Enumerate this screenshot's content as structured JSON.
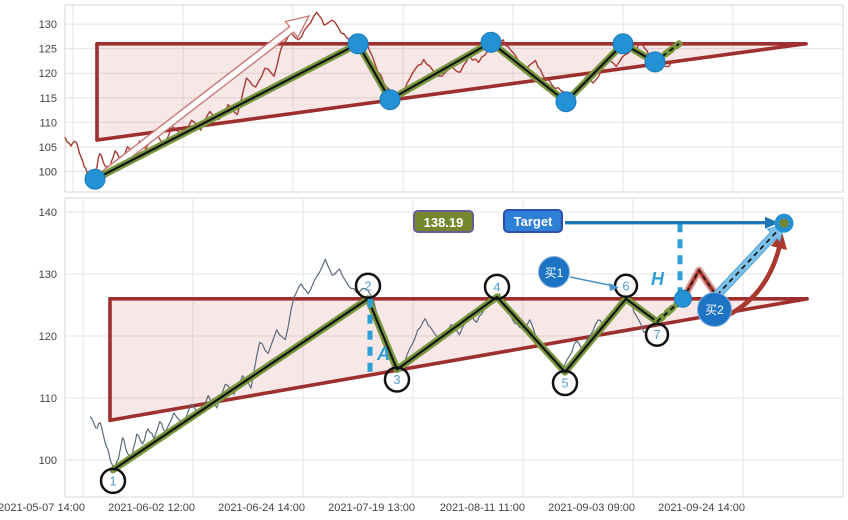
{
  "chart_data": {
    "type": "line",
    "title": "",
    "panels": [
      {
        "id": "top",
        "y_ticks": [
          "100",
          "105",
          "110",
          "115",
          "120",
          "125",
          "130"
        ],
        "x_ticks": []
      },
      {
        "id": "bottom",
        "y_ticks": [
          "100",
          "110",
          "120",
          "130",
          "140"
        ],
        "x_ticks": [
          "2021-05-07 14:00",
          "2021-06-02 12:00",
          "2021-06-24 14:00",
          "2021-07-19 13:00",
          "2021-08-11 11:00",
          "2021-09-03 09:00",
          "2021-09-24 14:00"
        ]
      }
    ],
    "price_series": {
      "name": "price",
      "points": [
        [
          0,
          107
        ],
        [
          0.01,
          105.2
        ],
        [
          0.018,
          106
        ],
        [
          0.026,
          103
        ],
        [
          0.034,
          100.6
        ],
        [
          0.042,
          98.4
        ],
        [
          0.05,
          100.2
        ],
        [
          0.057,
          103.6
        ],
        [
          0.065,
          101.2
        ],
        [
          0.073,
          100.4
        ],
        [
          0.082,
          104.2
        ],
        [
          0.092,
          102.6
        ],
        [
          0.102,
          105
        ],
        [
          0.112,
          103.4
        ],
        [
          0.122,
          106.2
        ],
        [
          0.132,
          104.6
        ],
        [
          0.147,
          107.6
        ],
        [
          0.162,
          105.8
        ],
        [
          0.177,
          109
        ],
        [
          0.192,
          107.2
        ],
        [
          0.207,
          110.4
        ],
        [
          0.222,
          108.4
        ],
        [
          0.237,
          112.2
        ],
        [
          0.252,
          110.6
        ],
        [
          0.267,
          113.6
        ],
        [
          0.282,
          111.6
        ],
        [
          0.297,
          119
        ],
        [
          0.312,
          117.2
        ],
        [
          0.327,
          121
        ],
        [
          0.342,
          119.4
        ],
        [
          0.357,
          126.2
        ],
        [
          0.37,
          128.4
        ],
        [
          0.382,
          126.8
        ],
        [
          0.397,
          129.6
        ],
        [
          0.412,
          132.4
        ],
        [
          0.424,
          129.8
        ],
        [
          0.437,
          130.8
        ],
        [
          0.452,
          128.2
        ],
        [
          0.467,
          127
        ],
        [
          0.482,
          127.6
        ],
        [
          0.494,
          126.2
        ],
        [
          0.507,
          122
        ],
        [
          0.522,
          118
        ],
        [
          0.534,
          115.6
        ],
        [
          0.547,
          114.4
        ],
        [
          0.56,
          118
        ],
        [
          0.574,
          121
        ],
        [
          0.587,
          122.8
        ],
        [
          0.602,
          120.6
        ],
        [
          0.617,
          119.4
        ],
        [
          0.632,
          121.8
        ],
        [
          0.647,
          120.2
        ],
        [
          0.662,
          123.6
        ],
        [
          0.677,
          122.2
        ],
        [
          0.692,
          124.6
        ],
        [
          0.707,
          126.4
        ],
        [
          0.717,
          126.8
        ],
        [
          0.73,
          124.6
        ],
        [
          0.744,
          122
        ],
        [
          0.757,
          121.2
        ],
        [
          0.77,
          122.6
        ],
        [
          0.782,
          119.6
        ],
        [
          0.797,
          117.6
        ],
        [
          0.812,
          116.4
        ],
        [
          0.827,
          114.4
        ],
        [
          0.84,
          116.8
        ],
        [
          0.852,
          119.2
        ],
        [
          0.864,
          118
        ],
        [
          0.877,
          120.2
        ],
        [
          0.89,
          122.6
        ],
        [
          0.902,
          121.4
        ],
        [
          0.917,
          123.8
        ],
        [
          0.932,
          125.2
        ],
        [
          0.944,
          126
        ],
        [
          0.957,
          123.2
        ],
        [
          0.97,
          120.6
        ],
        [
          0.982,
          121.4
        ],
        [
          1,
          122.4
        ]
      ]
    },
    "zigzag": {
      "pivots": [
        {
          "label": "1",
          "price": 98.4
        },
        {
          "label": "2",
          "price": 126.0
        },
        {
          "label": "3",
          "price": 114.6
        },
        {
          "label": "4",
          "price": 126.3
        },
        {
          "label": "5",
          "price": 114.2
        },
        {
          "label": "6",
          "price": 126.0
        },
        {
          "label": "7",
          "price": 122.3
        }
      ],
      "projection": {
        "label": "H",
        "price": 126.0
      }
    },
    "trend_channel": {
      "resistance": 126.0,
      "support_start": 106.4
    },
    "measurements": {
      "A": {
        "from": 126.0,
        "to": 114.2
      },
      "H": {
        "from": 138.19,
        "to": 126.0
      }
    },
    "target": {
      "price": 138.19,
      "badge_text": "138.19",
      "label": "Target"
    },
    "projection_path": {
      "peak_price": 130.6,
      "retest_price": 126.6
    },
    "annotations": {
      "buy1": "买1",
      "buy2": "买2",
      "label_A": "A",
      "label_H": "H"
    },
    "colors": {
      "price_top": "#a93a34",
      "price_bottom": "#5d6b7a",
      "trend": "#9e2f2f",
      "trend_fill": "rgba(190,65,55,0.12)",
      "zigzag_green": "#78973e",
      "zigzag_core": "#141414",
      "pivot_dot": "#2391d4",
      "pivot_dot_edge": "#1b7cb8",
      "annotation_blue": "#2e9fd6",
      "arrow_blue": "#1d78b5",
      "sky_arrow": "#7cc0e8",
      "sky_arrow_edge": "#58a8d4",
      "dark_red": "#a8382e",
      "proj_casing": "#dba0a0",
      "badge_price_bg": "#75872e",
      "badge_target_bg": "#2e7fd6",
      "buy_circle_bg": "#1d74c4",
      "circle_number": "#5b9fd0",
      "circle_ring": "#111111",
      "breakout_arrow_fill": "#ffffff",
      "breakout_arrow_edge": "#c97a7a",
      "grid": "#e4e4e4",
      "panel_border": "#d7d7d7",
      "tick_text": "#444444"
    }
  }
}
